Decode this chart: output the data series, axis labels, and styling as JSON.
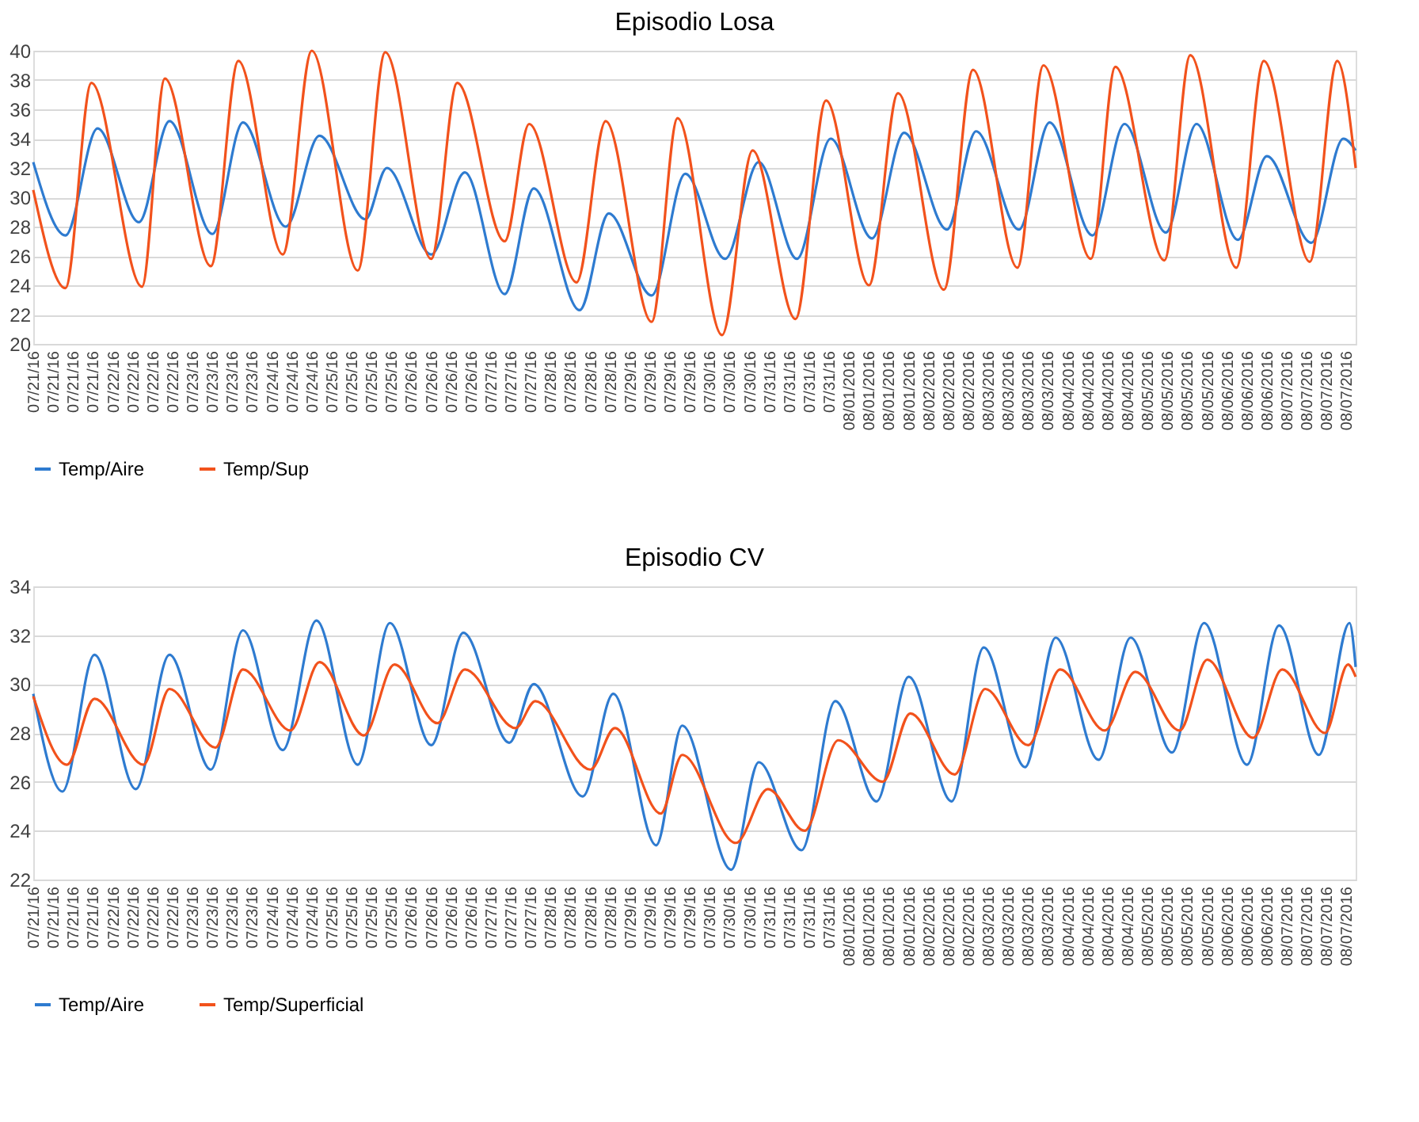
{
  "chart_data": [
    {
      "type": "line",
      "title": "Episodio Losa",
      "xlim": [
        "2016-07-21T00:00",
        "2016-08-08T00:00"
      ],
      "ylim": [
        20,
        40
      ],
      "yticks": [
        20,
        22,
        24,
        26,
        28,
        30,
        32,
        34,
        36,
        38,
        40
      ],
      "grid": "y",
      "legend": "bottom",
      "xticks": [
        {
          "value": "2016-07-21T00:00",
          "label": "07/21/16"
        },
        {
          "value": "2016-07-21T06:30",
          "label": "07/21/16"
        },
        {
          "value": "2016-07-21T13:00",
          "label": "07/21/16"
        },
        {
          "value": "2016-07-21T19:30",
          "label": "07/21/16"
        },
        {
          "value": "2016-07-22T02:00",
          "label": "07/22/16"
        },
        {
          "value": "2016-07-22T08:30",
          "label": "07/22/16"
        },
        {
          "value": "2016-07-22T15:00",
          "label": "07/22/16"
        },
        {
          "value": "2016-07-22T21:30",
          "label": "07/22/16"
        },
        {
          "value": "2016-07-23T04:00",
          "label": "07/23/16"
        },
        {
          "value": "2016-07-23T10:30",
          "label": "07/23/16"
        },
        {
          "value": "2016-07-23T17:00",
          "label": "07/23/16"
        },
        {
          "value": "2016-07-23T23:30",
          "label": "07/23/16"
        },
        {
          "value": "2016-07-24T06:00",
          "label": "07/24/16"
        },
        {
          "value": "2016-07-24T12:30",
          "label": "07/24/16"
        },
        {
          "value": "2016-07-24T19:00",
          "label": "07/24/16"
        },
        {
          "value": "2016-07-25T01:30",
          "label": "07/25/16"
        },
        {
          "value": "2016-07-25T08:00",
          "label": "07/25/16"
        },
        {
          "value": "2016-07-25T14:30",
          "label": "07/25/16"
        },
        {
          "value": "2016-07-25T21:00",
          "label": "07/25/16"
        },
        {
          "value": "2016-07-26T03:30",
          "label": "07/26/16"
        },
        {
          "value": "2016-07-26T10:00",
          "label": "07/26/16"
        },
        {
          "value": "2016-07-26T16:30",
          "label": "07/26/16"
        },
        {
          "value": "2016-07-26T23:00",
          "label": "07/26/16"
        },
        {
          "value": "2016-07-27T05:30",
          "label": "07/27/16"
        },
        {
          "value": "2016-07-27T12:00",
          "label": "07/27/16"
        },
        {
          "value": "2016-07-27T18:30",
          "label": "07/27/16"
        },
        {
          "value": "2016-07-28T01:00",
          "label": "07/28/16"
        },
        {
          "value": "2016-07-28T07:30",
          "label": "07/28/16"
        },
        {
          "value": "2016-07-28T14:00",
          "label": "07/28/16"
        },
        {
          "value": "2016-07-28T20:30",
          "label": "07/28/16"
        },
        {
          "value": "2016-07-29T03:00",
          "label": "07/29/16"
        },
        {
          "value": "2016-07-29T09:30",
          "label": "07/29/16"
        },
        {
          "value": "2016-07-29T16:00",
          "label": "07/29/16"
        },
        {
          "value": "2016-07-29T22:30",
          "label": "07/29/16"
        },
        {
          "value": "2016-07-30T05:00",
          "label": "07/30/16"
        },
        {
          "value": "2016-07-30T11:30",
          "label": "07/30/16"
        },
        {
          "value": "2016-07-30T18:00",
          "label": "07/30/16"
        },
        {
          "value": "2016-07-31T00:30",
          "label": "07/31/16"
        },
        {
          "value": "2016-07-31T07:00",
          "label": "07/31/16"
        },
        {
          "value": "2016-07-31T13:30",
          "label": "07/31/16"
        },
        {
          "value": "2016-07-31T20:00",
          "label": "07/31/16"
        },
        {
          "value": "2016-08-01T02:30",
          "label": "08/01/2016"
        },
        {
          "value": "2016-08-01T09:00",
          "label": "08/01/2016"
        },
        {
          "value": "2016-08-01T15:30",
          "label": "08/01/2016"
        },
        {
          "value": "2016-08-01T22:00",
          "label": "08/01/2016"
        },
        {
          "value": "2016-08-02T04:30",
          "label": "08/02/2016"
        },
        {
          "value": "2016-08-02T11:00",
          "label": "08/02/2016"
        },
        {
          "value": "2016-08-02T17:30",
          "label": "08/02/2016"
        },
        {
          "value": "2016-08-03T00:00",
          "label": "08/03/2016"
        },
        {
          "value": "2016-08-03T06:30",
          "label": "08/03/2016"
        },
        {
          "value": "2016-08-03T13:00",
          "label": "08/03/2016"
        },
        {
          "value": "2016-08-03T19:30",
          "label": "08/03/2016"
        },
        {
          "value": "2016-08-04T02:00",
          "label": "08/04/2016"
        },
        {
          "value": "2016-08-04T08:30",
          "label": "08/04/2016"
        },
        {
          "value": "2016-08-04T15:00",
          "label": "08/04/2016"
        },
        {
          "value": "2016-08-04T21:30",
          "label": "08/04/2016"
        },
        {
          "value": "2016-08-05T04:00",
          "label": "08/05/2016"
        },
        {
          "value": "2016-08-05T10:30",
          "label": "08/05/2016"
        },
        {
          "value": "2016-08-05T17:00",
          "label": "08/05/2016"
        },
        {
          "value": "2016-08-05T23:30",
          "label": "08/05/2016"
        },
        {
          "value": "2016-08-06T06:00",
          "label": "08/06/2016"
        },
        {
          "value": "2016-08-06T12:30",
          "label": "08/06/2016"
        },
        {
          "value": "2016-08-06T19:00",
          "label": "08/06/2016"
        },
        {
          "value": "2016-08-07T01:30",
          "label": "08/07/2016"
        },
        {
          "value": "2016-08-07T08:00",
          "label": "08/07/2016"
        },
        {
          "value": "2016-08-07T14:30",
          "label": "08/07/2016"
        },
        {
          "value": "2016-08-07T21:00",
          "label": "08/07/2016"
        }
      ],
      "series": [
        {
          "name": "Temp/Aire",
          "color": "#2e7bd0",
          "x": [
            "2016-07-21T00:00",
            "2016-07-21T10:30",
            "2016-07-21T21:00",
            "2016-07-22T10:30",
            "2016-07-22T20:30",
            "2016-07-23T10:30",
            "2016-07-23T20:30",
            "2016-07-24T10:30",
            "2016-07-24T21:30",
            "2016-07-25T12:30",
            "2016-07-25T19:30",
            "2016-07-26T10:00",
            "2016-07-26T21:00",
            "2016-07-27T10:00",
            "2016-07-27T19:30",
            "2016-07-28T10:30",
            "2016-07-28T20:00",
            "2016-07-29T10:00",
            "2016-07-29T21:00",
            "2016-07-30T10:00",
            "2016-07-30T21:00",
            "2016-07-31T09:30",
            "2016-07-31T20:30",
            "2016-08-01T10:00",
            "2016-08-01T20:30",
            "2016-08-02T10:30",
            "2016-08-02T20:00",
            "2016-08-03T10:00",
            "2016-08-03T20:00",
            "2016-08-04T10:00",
            "2016-08-04T20:30",
            "2016-08-05T10:00",
            "2016-08-05T20:00",
            "2016-08-06T09:30",
            "2016-08-06T19:00",
            "2016-08-07T09:30",
            "2016-08-07T20:00",
            "2016-08-08T00:00"
          ],
          "values": [
            32.4,
            27.4,
            34.7,
            28.3,
            35.2,
            27.5,
            35.1,
            28.0,
            34.2,
            28.5,
            32.0,
            26.1,
            31.7,
            23.4,
            30.6,
            22.3,
            28.9,
            23.3,
            31.6,
            25.8,
            32.4,
            25.8,
            34.0,
            27.2,
            34.4,
            27.8,
            34.5,
            27.8,
            35.1,
            27.4,
            35.0,
            27.6,
            35.0,
            27.1,
            32.8,
            26.9,
            34.0,
            33.2
          ]
        },
        {
          "name": "Temp/Sup",
          "color": "#f2521c",
          "x": [
            "2016-07-21T00:00",
            "2016-07-21T10:30",
            "2016-07-21T19:00",
            "2016-07-22T11:30",
            "2016-07-22T19:00",
            "2016-07-23T10:00",
            "2016-07-23T19:00",
            "2016-07-24T09:30",
            "2016-07-24T19:00",
            "2016-07-25T10:00",
            "2016-07-25T19:00",
            "2016-07-26T10:00",
            "2016-07-26T18:30",
            "2016-07-27T10:00",
            "2016-07-27T18:00",
            "2016-07-28T09:30",
            "2016-07-28T19:00",
            "2016-07-29T10:00",
            "2016-07-29T18:30",
            "2016-07-30T09:00",
            "2016-07-30T19:00",
            "2016-07-31T09:00",
            "2016-07-31T19:00",
            "2016-08-01T09:00",
            "2016-08-01T18:30",
            "2016-08-02T09:30",
            "2016-08-02T19:00",
            "2016-08-03T09:30",
            "2016-08-03T18:00",
            "2016-08-04T09:30",
            "2016-08-04T17:30",
            "2016-08-05T09:30",
            "2016-08-05T18:00",
            "2016-08-06T09:00",
            "2016-08-06T18:00",
            "2016-08-07T09:00",
            "2016-08-07T18:00",
            "2016-08-08T00:00"
          ],
          "values": [
            30.5,
            23.8,
            37.8,
            23.9,
            38.1,
            25.3,
            39.3,
            26.1,
            40.0,
            25.0,
            39.9,
            25.8,
            37.8,
            27.0,
            35.0,
            24.2,
            35.2,
            21.5,
            35.4,
            20.6,
            33.2,
            21.7,
            36.6,
            24.0,
            37.1,
            23.7,
            38.7,
            25.2,
            39.0,
            25.8,
            38.9,
            25.7,
            39.7,
            25.2,
            39.3,
            25.6,
            39.3,
            32.0
          ]
        }
      ]
    },
    {
      "type": "line",
      "title": "Episodio CV",
      "xlim": [
        "2016-07-21T00:00",
        "2016-08-08T00:00"
      ],
      "ylim": [
        22,
        34
      ],
      "yticks": [
        22,
        24,
        26,
        28,
        30,
        32,
        34
      ],
      "grid": "y",
      "legend": "bottom",
      "xticks": [
        {
          "value": "2016-07-21T00:00",
          "label": "07/21/16"
        },
        {
          "value": "2016-07-21T06:30",
          "label": "07/21/16"
        },
        {
          "value": "2016-07-21T13:00",
          "label": "07/21/16"
        },
        {
          "value": "2016-07-21T19:30",
          "label": "07/21/16"
        },
        {
          "value": "2016-07-22T02:00",
          "label": "07/22/16"
        },
        {
          "value": "2016-07-22T08:30",
          "label": "07/22/16"
        },
        {
          "value": "2016-07-22T15:00",
          "label": "07/22/16"
        },
        {
          "value": "2016-07-22T21:30",
          "label": "07/22/16"
        },
        {
          "value": "2016-07-23T04:00",
          "label": "07/23/16"
        },
        {
          "value": "2016-07-23T10:30",
          "label": "07/23/16"
        },
        {
          "value": "2016-07-23T17:00",
          "label": "07/23/16"
        },
        {
          "value": "2016-07-23T23:30",
          "label": "07/23/16"
        },
        {
          "value": "2016-07-24T06:00",
          "label": "07/24/16"
        },
        {
          "value": "2016-07-24T12:30",
          "label": "07/24/16"
        },
        {
          "value": "2016-07-24T19:00",
          "label": "07/24/16"
        },
        {
          "value": "2016-07-25T01:30",
          "label": "07/25/16"
        },
        {
          "value": "2016-07-25T08:00",
          "label": "07/25/16"
        },
        {
          "value": "2016-07-25T14:30",
          "label": "07/25/16"
        },
        {
          "value": "2016-07-25T21:00",
          "label": "07/25/16"
        },
        {
          "value": "2016-07-26T03:30",
          "label": "07/26/16"
        },
        {
          "value": "2016-07-26T10:00",
          "label": "07/26/16"
        },
        {
          "value": "2016-07-26T16:30",
          "label": "07/26/16"
        },
        {
          "value": "2016-07-26T23:00",
          "label": "07/26/16"
        },
        {
          "value": "2016-07-27T05:30",
          "label": "07/27/16"
        },
        {
          "value": "2016-07-27T12:00",
          "label": "07/27/16"
        },
        {
          "value": "2016-07-27T18:30",
          "label": "07/27/16"
        },
        {
          "value": "2016-07-28T01:00",
          "label": "07/28/16"
        },
        {
          "value": "2016-07-28T07:30",
          "label": "07/28/16"
        },
        {
          "value": "2016-07-28T14:00",
          "label": "07/28/16"
        },
        {
          "value": "2016-07-28T20:30",
          "label": "07/28/16"
        },
        {
          "value": "2016-07-29T03:00",
          "label": "07/29/16"
        },
        {
          "value": "2016-07-29T09:30",
          "label": "07/29/16"
        },
        {
          "value": "2016-07-29T16:00",
          "label": "07/29/16"
        },
        {
          "value": "2016-07-29T22:30",
          "label": "07/29/16"
        },
        {
          "value": "2016-07-30T05:00",
          "label": "07/30/16"
        },
        {
          "value": "2016-07-30T11:30",
          "label": "07/30/16"
        },
        {
          "value": "2016-07-30T18:00",
          "label": "07/30/16"
        },
        {
          "value": "2016-07-31T00:30",
          "label": "07/31/16"
        },
        {
          "value": "2016-07-31T07:00",
          "label": "07/31/16"
        },
        {
          "value": "2016-07-31T13:30",
          "label": "07/31/16"
        },
        {
          "value": "2016-07-31T20:00",
          "label": "07/31/16"
        },
        {
          "value": "2016-08-01T02:30",
          "label": "08/01/2016"
        },
        {
          "value": "2016-08-01T09:00",
          "label": "08/01/2016"
        },
        {
          "value": "2016-08-01T15:30",
          "label": "08/01/2016"
        },
        {
          "value": "2016-08-01T22:00",
          "label": "08/01/2016"
        },
        {
          "value": "2016-08-02T04:30",
          "label": "08/02/2016"
        },
        {
          "value": "2016-08-02T11:00",
          "label": "08/02/2016"
        },
        {
          "value": "2016-08-02T17:30",
          "label": "08/02/2016"
        },
        {
          "value": "2016-08-03T00:00",
          "label": "08/03/2016"
        },
        {
          "value": "2016-08-03T06:30",
          "label": "08/03/2016"
        },
        {
          "value": "2016-08-03T13:00",
          "label": "08/03/2016"
        },
        {
          "value": "2016-08-03T19:30",
          "label": "08/03/2016"
        },
        {
          "value": "2016-08-04T02:00",
          "label": "08/04/2016"
        },
        {
          "value": "2016-08-04T08:30",
          "label": "08/04/2016"
        },
        {
          "value": "2016-08-04T15:00",
          "label": "08/04/2016"
        },
        {
          "value": "2016-08-04T21:30",
          "label": "08/04/2016"
        },
        {
          "value": "2016-08-05T04:00",
          "label": "08/05/2016"
        },
        {
          "value": "2016-08-05T10:30",
          "label": "08/05/2016"
        },
        {
          "value": "2016-08-05T17:00",
          "label": "08/05/2016"
        },
        {
          "value": "2016-08-05T23:30",
          "label": "08/05/2016"
        },
        {
          "value": "2016-08-06T06:00",
          "label": "08/06/2016"
        },
        {
          "value": "2016-08-06T12:30",
          "label": "08/06/2016"
        },
        {
          "value": "2016-08-06T19:00",
          "label": "08/06/2016"
        },
        {
          "value": "2016-08-07T01:30",
          "label": "08/07/2016"
        },
        {
          "value": "2016-08-07T08:00",
          "label": "08/07/2016"
        },
        {
          "value": "2016-08-07T14:30",
          "label": "08/07/2016"
        },
        {
          "value": "2016-08-07T21:00",
          "label": "08/07/2016"
        }
      ],
      "series": [
        {
          "name": "Temp/Aire",
          "color": "#2e7bd0",
          "x": [
            "2016-07-21T00:00",
            "2016-07-21T09:30",
            "2016-07-21T20:00",
            "2016-07-22T09:30",
            "2016-07-22T20:30",
            "2016-07-23T10:00",
            "2016-07-23T20:30",
            "2016-07-24T09:30",
            "2016-07-24T20:30",
            "2016-07-25T10:00",
            "2016-07-25T20:30",
            "2016-07-26T10:00",
            "2016-07-26T20:30",
            "2016-07-27T11:30",
            "2016-07-27T19:30",
            "2016-07-28T11:30",
            "2016-07-28T21:30",
            "2016-07-29T11:30",
            "2016-07-29T20:00",
            "2016-07-30T12:00",
            "2016-07-30T21:00",
            "2016-07-31T11:00",
            "2016-07-31T22:00",
            "2016-08-01T11:30",
            "2016-08-01T22:00",
            "2016-08-02T12:00",
            "2016-08-02T22:30",
            "2016-08-03T12:00",
            "2016-08-03T22:00",
            "2016-08-04T12:00",
            "2016-08-04T22:30",
            "2016-08-05T12:00",
            "2016-08-05T22:30",
            "2016-08-06T12:30",
            "2016-08-06T23:00",
            "2016-08-07T12:00",
            "2016-08-07T22:00",
            "2016-08-08T00:00"
          ],
          "values": [
            29.6,
            25.6,
            31.2,
            25.7,
            31.2,
            26.5,
            32.2,
            27.3,
            32.6,
            26.7,
            32.5,
            27.5,
            32.1,
            27.6,
            30.0,
            25.4,
            29.6,
            23.4,
            28.3,
            22.4,
            26.8,
            23.2,
            29.3,
            25.2,
            30.3,
            25.2,
            31.5,
            26.6,
            31.9,
            26.9,
            31.9,
            27.2,
            32.5,
            26.7,
            32.4,
            27.1,
            32.5,
            30.7
          ]
        },
        {
          "name": "Temp/Superficial",
          "color": "#f2521c",
          "x": [
            "2016-07-21T00:00",
            "2016-07-21T11:00",
            "2016-07-21T20:00",
            "2016-07-22T12:00",
            "2016-07-22T20:30",
            "2016-07-23T11:30",
            "2016-07-23T20:30",
            "2016-07-24T12:00",
            "2016-07-24T21:30",
            "2016-07-25T12:00",
            "2016-07-25T22:00",
            "2016-07-26T12:00",
            "2016-07-26T21:00",
            "2016-07-27T13:30",
            "2016-07-27T20:00",
            "2016-07-28T14:00",
            "2016-07-28T22:00",
            "2016-07-29T13:00",
            "2016-07-29T20:00",
            "2016-07-30T13:30",
            "2016-07-31T00:00",
            "2016-07-31T12:00",
            "2016-07-31T23:00",
            "2016-08-01T13:30",
            "2016-08-01T22:30",
            "2016-08-02T13:00",
            "2016-08-02T23:00",
            "2016-08-03T13:00",
            "2016-08-03T23:30",
            "2016-08-04T14:00",
            "2016-08-05T00:00",
            "2016-08-05T14:30",
            "2016-08-05T23:30",
            "2016-08-06T14:30",
            "2016-08-07T00:00",
            "2016-08-07T14:00",
            "2016-08-07T21:30",
            "2016-08-08T00:00"
          ],
          "values": [
            29.5,
            26.7,
            29.4,
            26.7,
            29.8,
            27.4,
            30.6,
            28.1,
            30.9,
            27.9,
            30.8,
            28.4,
            30.6,
            28.2,
            29.3,
            26.5,
            28.2,
            24.7,
            27.1,
            23.5,
            25.7,
            24.0,
            27.7,
            26.0,
            28.8,
            26.3,
            29.8,
            27.5,
            30.6,
            28.1,
            30.5,
            28.1,
            31.0,
            27.8,
            30.6,
            28.0,
            30.8,
            30.3
          ]
        }
      ]
    }
  ]
}
